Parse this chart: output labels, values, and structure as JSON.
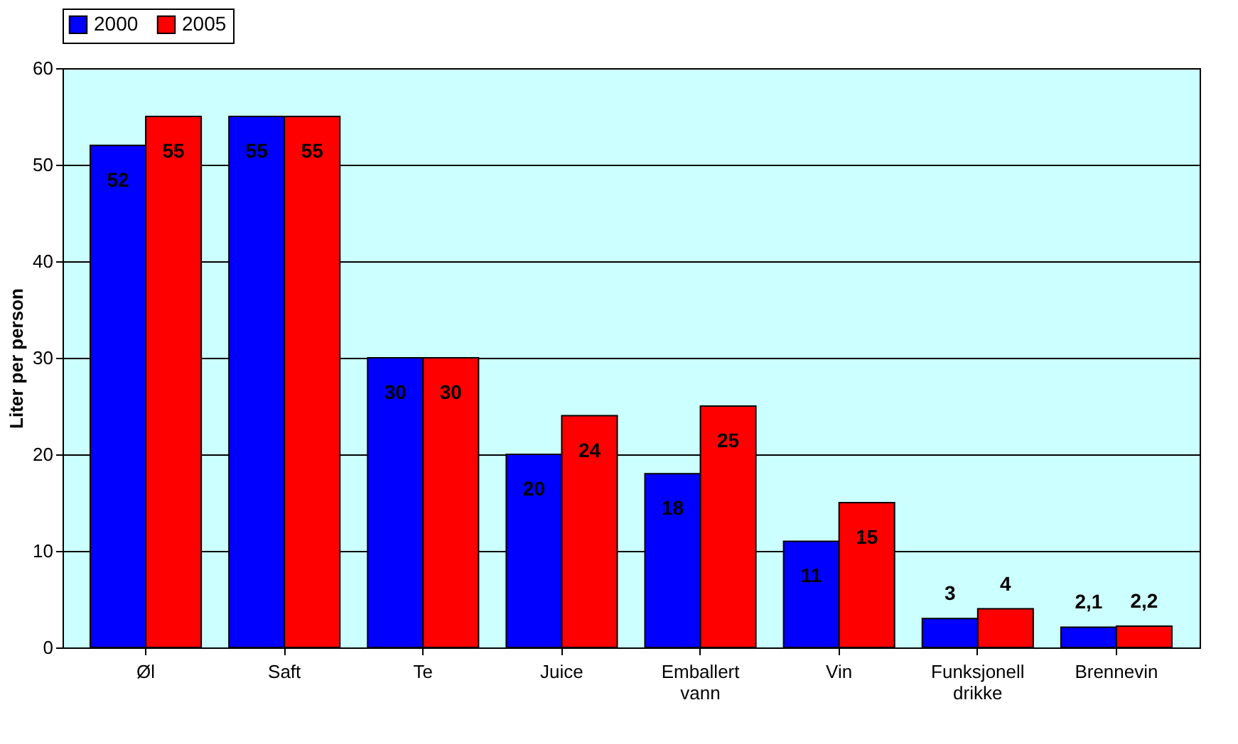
{
  "chart_data": {
    "type": "bar",
    "ylabel": "Liter per person",
    "categories": [
      "Øl",
      "Saft",
      "Te",
      "Juice",
      "Emballert vann",
      "Vin",
      "Funksjonell drikke",
      "Brennevin"
    ],
    "series": [
      {
        "name": "2000",
        "color": "#0000ff",
        "values": [
          52,
          55,
          30,
          20,
          18,
          11,
          3,
          2.1
        ],
        "value_labels": [
          "52",
          "55",
          "30",
          "20",
          "18",
          "11",
          "3",
          "2,1"
        ]
      },
      {
        "name": "2005",
        "color": "#ff0000",
        "values": [
          55,
          55,
          30,
          24,
          25,
          15,
          4,
          2.2
        ],
        "value_labels": [
          "55",
          "55",
          "30",
          "24",
          "25",
          "15",
          "4",
          "2,2"
        ]
      }
    ],
    "ylim": [
      0,
      60
    ],
    "yticks": [
      0,
      10,
      20,
      30,
      40,
      50,
      60
    ],
    "grid": "y",
    "legend": "top"
  }
}
